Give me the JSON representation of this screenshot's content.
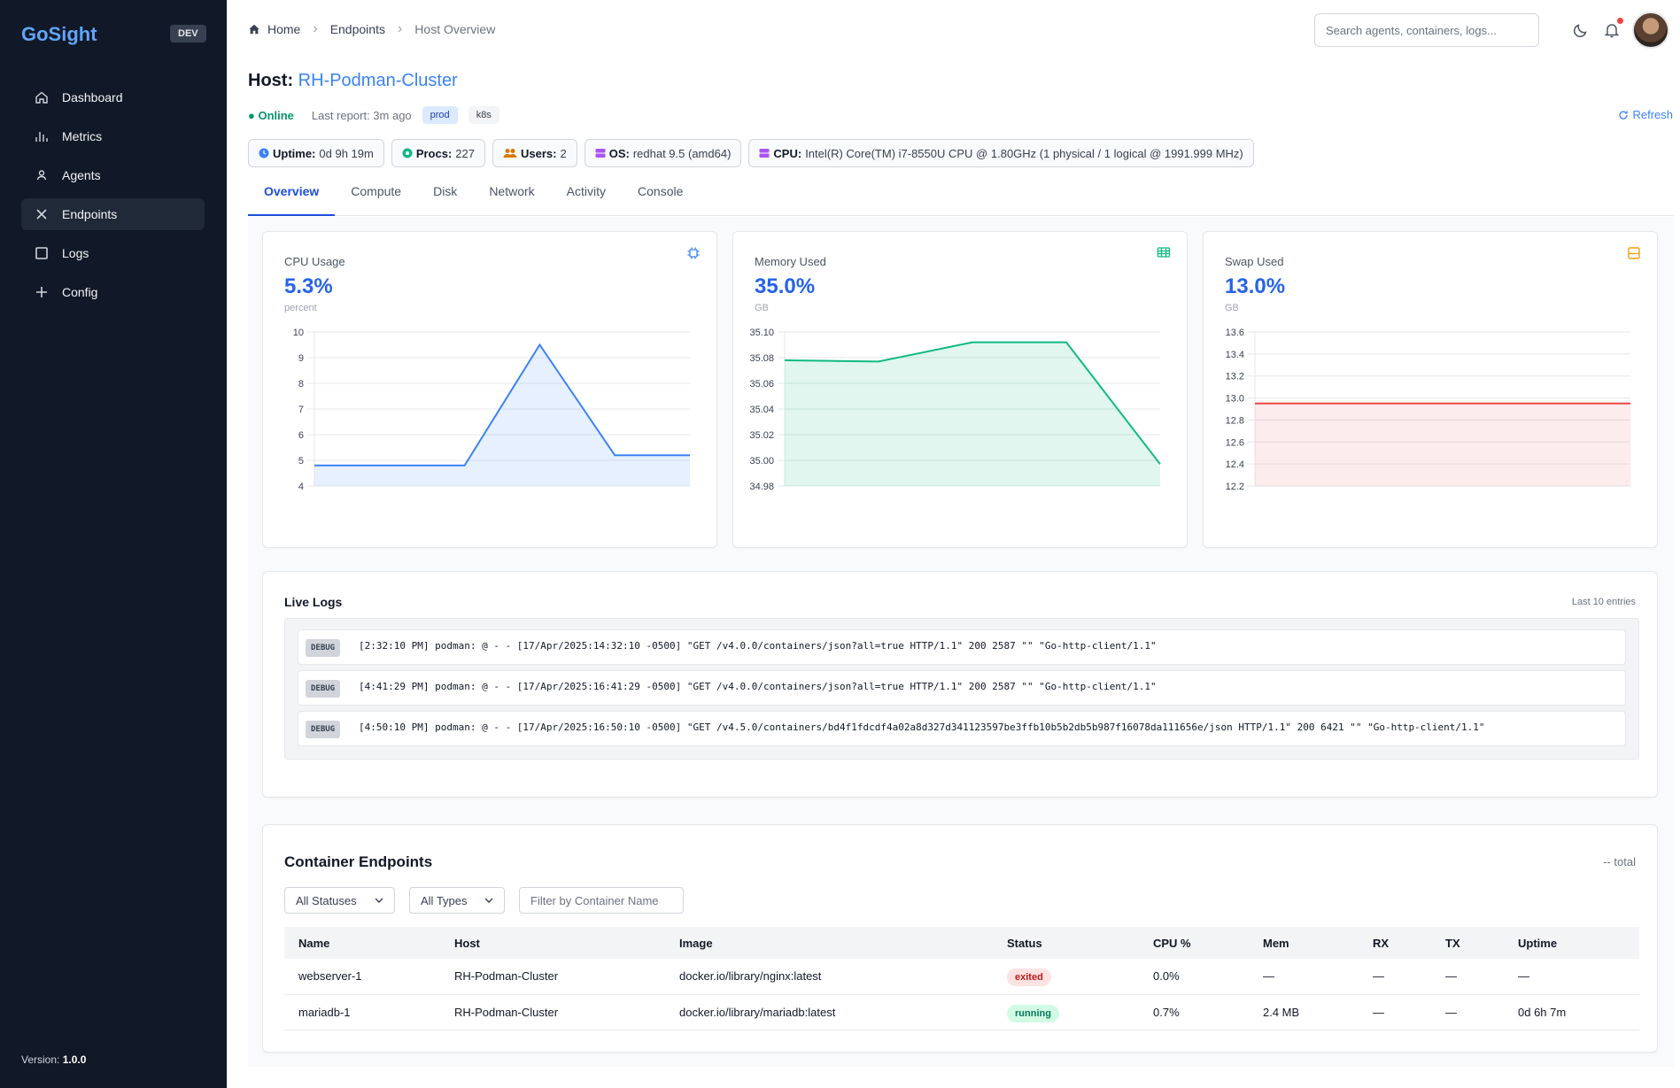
{
  "sidebar": {
    "brand": "GoSight",
    "env": "DEV",
    "items": [
      {
        "label": "Dashboard"
      },
      {
        "label": "Metrics"
      },
      {
        "label": "Agents"
      },
      {
        "label": "Endpoints"
      },
      {
        "label": "Logs"
      },
      {
        "label": "Config"
      }
    ],
    "version_label": "Version:",
    "version": "1.0.0"
  },
  "breadcrumb": [
    "Home",
    "Endpoints",
    "Host Overview"
  ],
  "search": {
    "placeholder": "Search agents, containers, logs..."
  },
  "host": {
    "title_prefix": "Host:",
    "name": "RH-Podman-Cluster",
    "status": "● Online",
    "last_report": "Last report: 3m ago",
    "tags": [
      "prod",
      "k8s"
    ],
    "refresh": "Refresh"
  },
  "chips": {
    "uptime": {
      "label": "Uptime:",
      "value": "0d 9h 19m"
    },
    "procs": {
      "label": "Procs:",
      "value": "227"
    },
    "users": {
      "label": "Users:",
      "value": "2"
    },
    "os": {
      "label": "OS:",
      "value": "redhat 9.5 (amd64)"
    },
    "cpu": {
      "label": "CPU:",
      "value": "Intel(R) Core(TM) i7-8550U CPU @ 1.80GHz (1 physical / 1 logical @ 1991.999 MHz)"
    }
  },
  "tabs": [
    "Overview",
    "Compute",
    "Disk",
    "Network",
    "Activity",
    "Console"
  ],
  "metrics": {
    "cpu": {
      "label": "CPU Usage",
      "value": "5.3%",
      "unit": "percent",
      "icon": "cpu-icon",
      "color": "#3b82f6"
    },
    "memory": {
      "label": "Memory Used",
      "value": "35.0%",
      "unit": "GB",
      "icon": "memory-icon",
      "color": "#10b981"
    },
    "swap": {
      "label": "Swap Used",
      "value": "13.0%",
      "unit": "GB",
      "icon": "swap-icon",
      "color": "#ef4444"
    }
  },
  "chart_data": [
    {
      "type": "area",
      "title": "CPU Usage",
      "ylim": [
        4,
        10
      ],
      "yticks": [
        4,
        5,
        6,
        7,
        8,
        9,
        10
      ],
      "values": [
        4.8,
        4.8,
        4.8,
        9.5,
        5.2,
        5.2
      ],
      "grid": true
    },
    {
      "type": "area",
      "title": "Memory Used",
      "ylim": [
        34.98,
        35.1
      ],
      "yticks": [
        34.98,
        35.0,
        35.02,
        35.04,
        35.06,
        35.08,
        35.1
      ],
      "values": [
        35.078,
        35.077,
        35.092,
        35.092,
        34.997
      ],
      "grid": true
    },
    {
      "type": "area",
      "title": "Swap Used",
      "ylim": [
        12.2,
        13.6
      ],
      "yticks": [
        12.2,
        12.4,
        12.6,
        12.8,
        13.0,
        13.2,
        13.4,
        13.6
      ],
      "values": [
        12.95,
        12.95,
        12.95,
        12.95,
        12.95
      ],
      "grid": true
    }
  ],
  "logs": {
    "title": "Live Logs",
    "meta": "Last 10 entries",
    "entries": [
      {
        "level": "DEBUG",
        "text": "[2:32:10 PM] podman: @ - - [17/Apr/2025:14:32:10 -0500] \"GET /v4.0.0/containers/json?all=true HTTP/1.1\" 200 2587 \"\" \"Go-http-client/1.1\""
      },
      {
        "level": "DEBUG",
        "text": "[4:41:29 PM] podman: @ - - [17/Apr/2025:16:41:29 -0500] \"GET /v4.0.0/containers/json?all=true HTTP/1.1\" 200 2587 \"\" \"Go-http-client/1.1\""
      },
      {
        "level": "DEBUG",
        "text": "[4:50:10 PM] podman: @ - - [17/Apr/2025:16:50:10 -0500] \"GET /v4.5.0/containers/bd4f1fdcdf4a02a8d327d341123597be3ffb10b5b2db5b987f16078da111656e/json HTTP/1.1\" 200 6421 \"\" \"Go-http-client/1.1\""
      }
    ]
  },
  "containers": {
    "title": "Container Endpoints",
    "total": "-- total",
    "status_filter": "All Statuses",
    "type_filter": "All Types",
    "name_filter_placeholder": "Filter by Container Name",
    "columns": [
      "Name",
      "Host",
      "Image",
      "Status",
      "CPU %",
      "Mem",
      "RX",
      "TX",
      "Uptime"
    ],
    "rows": [
      {
        "name": "webserver-1",
        "host": "RH-Podman-Cluster",
        "image": "docker.io/library/nginx:latest",
        "status": "exited",
        "cpu": "0.0%",
        "mem": "—",
        "rx": "—",
        "tx": "—",
        "uptime": "—"
      },
      {
        "name": "mariadb-1",
        "host": "RH-Podman-Cluster",
        "image": "docker.io/library/mariadb:latest",
        "status": "running",
        "cpu": "0.7%",
        "mem": "2.4 MB",
        "rx": "—",
        "tx": "—",
        "uptime": "0d 6h 7m"
      }
    ]
  }
}
